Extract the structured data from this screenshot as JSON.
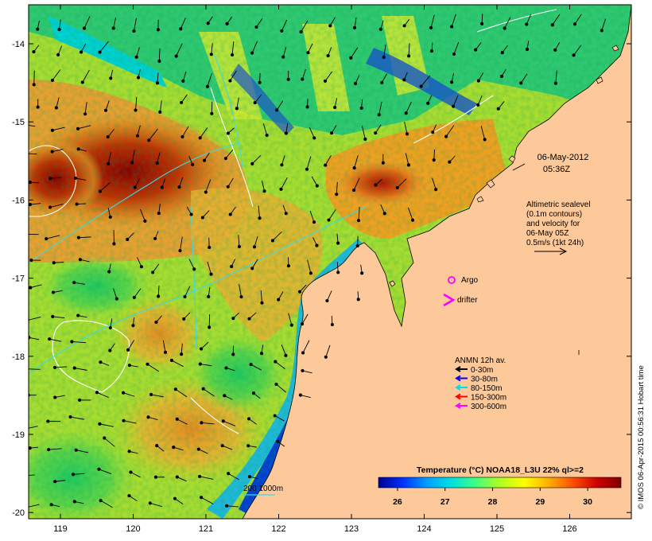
{
  "map": {
    "datetime_line1": "06-May-2012",
    "datetime_line2": "05:36Z",
    "altimetry_lines": [
      "Altimetric sealevel",
      "(0.1m contours)",
      "and velocity for",
      "06-May 05Z",
      "0.5m/s (1kt 24h)"
    ],
    "argo_label": "Argo",
    "drifter_label": "drifter",
    "anmn_title": "ANMN 12h av.",
    "anmn_legend": [
      {
        "label": "0-30m",
        "color": "#000000"
      },
      {
        "label": "30-80m",
        "color": "#0000ff"
      },
      {
        "label": "80-150m",
        "color": "#00e0e0"
      },
      {
        "label": "150-300m",
        "color": "#ff0000"
      },
      {
        "label": "300-600m",
        "color": "#ff00ff"
      }
    ],
    "bathy_label": "200  1000m",
    "colorbar_title": "Temperature (°C) NOAA18_L3U 22% ql>=2",
    "colorbar_ticks": [
      "26",
      "27",
      "28",
      "29",
      "30"
    ],
    "colorbar_range": [
      25.6,
      30.7
    ],
    "colorbar_colors": [
      "#000090",
      "#0030ff",
      "#00a0ff",
      "#00e0e0",
      "#40ff80",
      "#b0ff20",
      "#ffff00",
      "#ffb000",
      "#ff5000",
      "#d00000",
      "#800000"
    ],
    "lon_ticks": [
      "119",
      "120",
      "121",
      "122",
      "123",
      "124",
      "125",
      "126"
    ],
    "lat_ticks": [
      "-14",
      "-15",
      "-16",
      "-17",
      "-18",
      "-19",
      "-20"
    ],
    "credit": "© IMOS 06-Apr-2015 00:56:31 Hobart time",
    "land_color": "#fdc99a"
  }
}
